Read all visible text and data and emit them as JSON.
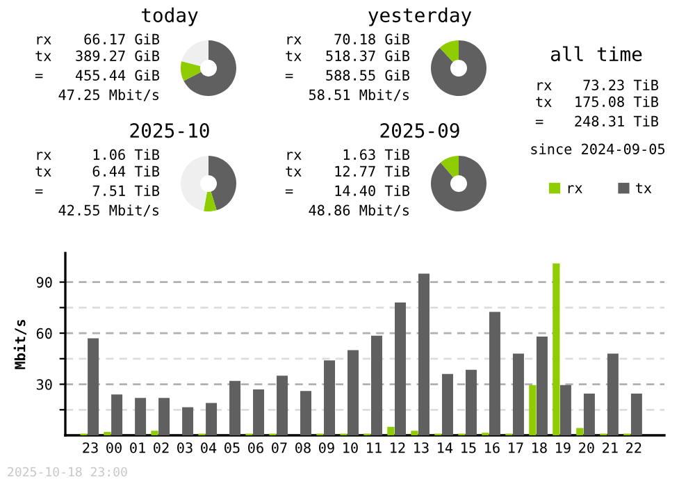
{
  "chart_data": [
    {
      "type": "donut",
      "title": "today",
      "categories": [
        null,
        null,
        null
      ],
      "values": [
        67.5,
        11.5,
        21.0
      ],
      "colors": [
        "#606060",
        "#8fcc00",
        "#efefef"
      ],
      "annotations": [
        "rx",
        "66.17 GiB",
        "tx",
        "389.27 GiB",
        "=",
        "455.44 GiB",
        "47.25 Mbit/s"
      ]
    },
    {
      "type": "donut",
      "title": "yesterday",
      "categories": [
        null,
        null
      ],
      "values": [
        88.1,
        11.9
      ],
      "colors": [
        "#606060",
        "#8fcc00"
      ],
      "annotations": [
        "rx",
        "70.18 GiB",
        "tx",
        "518.37 GiB",
        "=",
        "588.55 GiB",
        "58.51 Mbit/s"
      ]
    },
    {
      "type": "donut",
      "title": "2025-10",
      "categories": [
        null,
        null,
        null
      ],
      "values": [
        45.3,
        7.5,
        47.2
      ],
      "colors": [
        "#606060",
        "#8fcc00",
        "#efefef"
      ],
      "annotations": [
        "rx",
        "1.06 TiB",
        "tx",
        "6.44 TiB",
        "=",
        "7.51 TiB",
        "42.55 Mbit/s"
      ]
    },
    {
      "type": "donut",
      "title": "2025-09",
      "categories": [
        null,
        null
      ],
      "values": [
        88.7,
        11.3
      ],
      "colors": [
        "#606060",
        "#8fcc00"
      ],
      "annotations": [
        "rx",
        "1.63 TiB",
        "tx",
        "12.77 TiB",
        "=",
        "14.40 TiB",
        "48.86 Mbit/s"
      ]
    },
    {
      "type": "other",
      "title": "all time",
      "annotations": [
        "rx",
        "73.23 TiB",
        "tx",
        "175.08 TiB",
        "=",
        "248.31 TiB",
        "since 2024-09-05"
      ]
    },
    {
      "type": "bar",
      "ylabel": "Mbit/s",
      "categories": [
        "23",
        "00",
        "01",
        "02",
        "03",
        "04",
        "05",
        "06",
        "07",
        "08",
        "09",
        "10",
        "11",
        "12",
        "13",
        "14",
        "15",
        "16",
        "17",
        "18",
        "19",
        "20",
        "21",
        "22"
      ],
      "series": [
        {
          "name": "rx",
          "color": "#8fcc00",
          "values": [
            1,
            2,
            0,
            2.7,
            0,
            1,
            0,
            1,
            1,
            0,
            1,
            1,
            1,
            5,
            2.7,
            1,
            1,
            1.5,
            1,
            29.5,
            101,
            4.3,
            1,
            1
          ]
        },
        {
          "name": "tx",
          "color": "#606060",
          "values": [
            57,
            24,
            22,
            22,
            16.5,
            19,
            32,
            27,
            35,
            26,
            44,
            50,
            58.5,
            78,
            95,
            36,
            38.5,
            72.5,
            48,
            58,
            29.5,
            24.5,
            48,
            24.5
          ]
        }
      ],
      "ylim": [
        0,
        107
      ],
      "yticks": [
        {
          "value": 15,
          "label": null
        },
        30,
        {
          "value": 45,
          "label": null
        },
        60,
        {
          "value": 75,
          "label": null
        },
        90
      ],
      "grid": "y",
      "legend": "top right",
      "annotations": [
        "2025-10-18 23:00"
      ]
    }
  ]
}
